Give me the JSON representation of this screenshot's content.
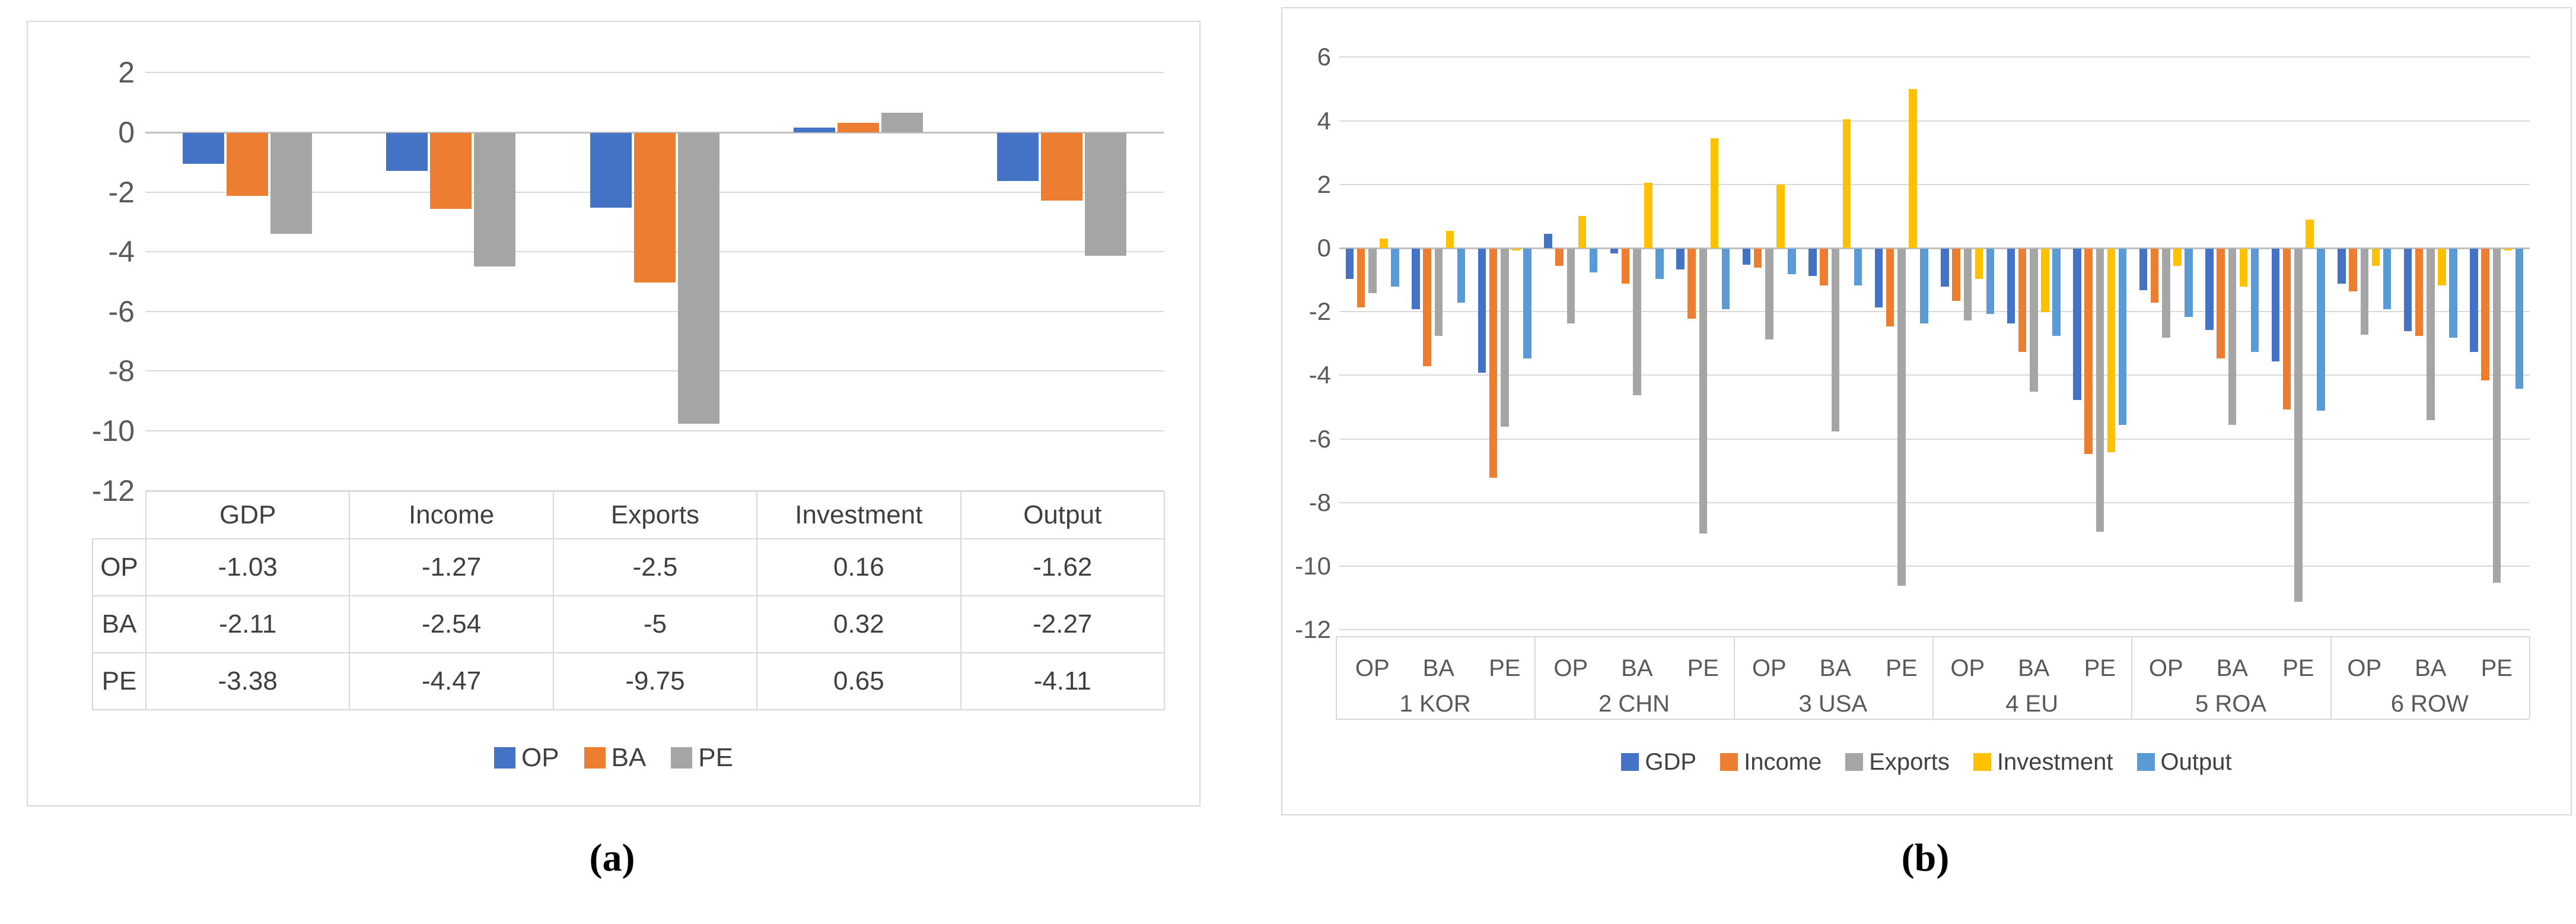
{
  "captions": {
    "a": "(a)",
    "b": "(b)"
  },
  "chart_data": [
    {
      "id": "a",
      "type": "bar",
      "title": "",
      "xlabel": "",
      "ylabel": "",
      "ylim": [
        -12,
        2
      ],
      "yticks": [
        2,
        0,
        -2,
        -4,
        -6,
        -8,
        -10,
        -12
      ],
      "grid": true,
      "legend_position": "bottom",
      "categories": [
        "GDP",
        "Income",
        "Exports",
        "Investment",
        "Output"
      ],
      "series": [
        {
          "name": "OP",
          "color": "#4472C4",
          "values": [
            -1.03,
            -1.27,
            -2.5,
            0.16,
            -1.62
          ]
        },
        {
          "name": "BA",
          "color": "#ED7D31",
          "values": [
            -2.11,
            -2.54,
            -5,
            0.32,
            -2.27
          ]
        },
        {
          "name": "PE",
          "color": "#A5A5A5",
          "values": [
            -3.38,
            -4.47,
            -9.75,
            0.65,
            -4.11
          ]
        }
      ],
      "data_table": {
        "row_headers": [
          "OP",
          "BA",
          "PE"
        ],
        "col_headers": [
          "GDP",
          "Income",
          "Exports",
          "Investment",
          "Output"
        ],
        "rows": [
          [
            "-1.03",
            "-1.27",
            "-2.5",
            "0.16",
            "-1.62"
          ],
          [
            "-2.11",
            "-2.54",
            "-5",
            "0.32",
            "-2.27"
          ],
          [
            "-3.38",
            "-4.47",
            "-9.75",
            "0.65",
            "-4.11"
          ]
        ]
      }
    },
    {
      "id": "b",
      "type": "bar",
      "title": "",
      "xlabel": "",
      "ylabel": "",
      "ylim": [
        -12,
        6
      ],
      "yticks": [
        6,
        4,
        2,
        0,
        -2,
        -4,
        -6,
        -8,
        -10,
        -12
      ],
      "grid": true,
      "legend_position": "bottom",
      "case_labels": [
        "OP",
        "BA",
        "PE"
      ],
      "series": [
        {
          "name": "GDP",
          "color": "#4472C4"
        },
        {
          "name": "Income",
          "color": "#ED7D31"
        },
        {
          "name": "Exports",
          "color": "#A5A5A5"
        },
        {
          "name": "Investment",
          "color": "#FFC000"
        },
        {
          "name": "Output",
          "color": "#5B9BD5"
        }
      ],
      "regions": [
        {
          "name": "1 KOR",
          "groups": [
            {
              "label": "OP",
              "values": [
                -0.95,
                -1.85,
                -1.4,
                0.3,
                -1.2
              ]
            },
            {
              "label": "BA",
              "values": [
                -1.9,
                -3.7,
                -2.75,
                0.55,
                -1.7
              ]
            },
            {
              "label": "PE",
              "values": [
                -3.9,
                -7.2,
                -5.6,
                -0.05,
                -3.45
              ]
            }
          ]
        },
        {
          "name": "2 CHN",
          "groups": [
            {
              "label": "OP",
              "values": [
                0.45,
                -0.55,
                -2.35,
                1.0,
                -0.75
              ]
            },
            {
              "label": "BA",
              "values": [
                -0.15,
                -1.1,
                -4.6,
                2.05,
                -0.95
              ]
            },
            {
              "label": "PE",
              "values": [
                -0.65,
                -2.2,
                -8.95,
                3.45,
                -1.9
              ]
            }
          ]
        },
        {
          "name": "3 USA",
          "groups": [
            {
              "label": "OP",
              "values": [
                -0.5,
                -0.6,
                -2.85,
                2.0,
                -0.8
              ]
            },
            {
              "label": "BA",
              "values": [
                -0.85,
                -1.15,
                -5.75,
                4.05,
                -1.15
              ]
            },
            {
              "label": "PE",
              "values": [
                -1.85,
                -2.45,
                -10.6,
                5.0,
                -2.35
              ]
            }
          ]
        },
        {
          "name": "4 EU",
          "groups": [
            {
              "label": "OP",
              "values": [
                -1.2,
                -1.65,
                -2.25,
                -0.95,
                -2.05
              ]
            },
            {
              "label": "BA",
              "values": [
                -2.35,
                -3.25,
                -4.5,
                -2.0,
                -2.75
              ]
            },
            {
              "label": "PE",
              "values": [
                -4.75,
                -6.45,
                -8.9,
                -6.4,
                -5.55
              ]
            }
          ]
        },
        {
          "name": "5 ROA",
          "groups": [
            {
              "label": "OP",
              "values": [
                -1.3,
                -1.7,
                -2.8,
                -0.55,
                -2.15
              ]
            },
            {
              "label": "BA",
              "values": [
                -2.55,
                -3.45,
                -5.55,
                -1.2,
                -3.25
              ]
            },
            {
              "label": "PE",
              "values": [
                -3.55,
                -5.05,
                -11.1,
                0.9,
                -5.1
              ]
            }
          ]
        },
        {
          "name": "6 ROW",
          "groups": [
            {
              "label": "OP",
              "values": [
                -1.1,
                -1.35,
                -2.7,
                -0.55,
                -1.9
              ]
            },
            {
              "label": "BA",
              "values": [
                -2.6,
                -2.75,
                -5.4,
                -1.15,
                -2.8
              ]
            },
            {
              "label": "PE",
              "values": [
                -3.25,
                -4.15,
                -10.5,
                -0.05,
                -4.4
              ]
            }
          ]
        }
      ]
    }
  ]
}
